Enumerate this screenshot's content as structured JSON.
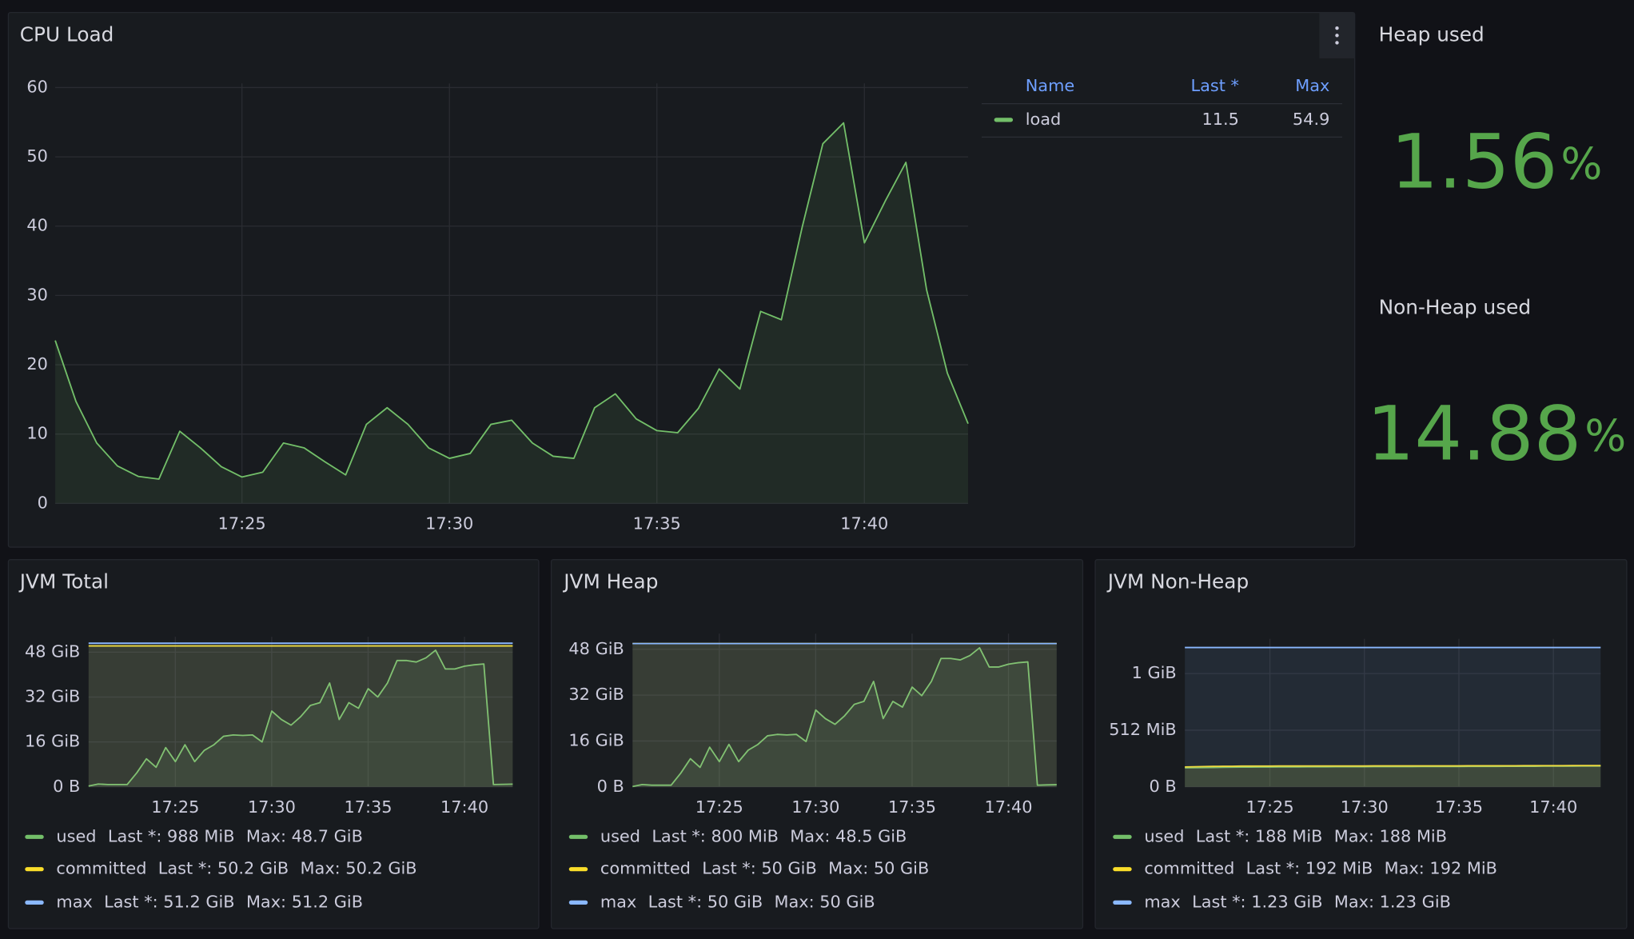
{
  "chart_data": [
    {
      "type": "line",
      "title": "CPU Load",
      "x": [
        "17:20:30",
        "17:21:00",
        "17:21:30",
        "17:22:00",
        "17:22:30",
        "17:23:00",
        "17:23:30",
        "17:24:00",
        "17:24:30",
        "17:25:00",
        "17:25:30",
        "17:26:00",
        "17:26:30",
        "17:27:00",
        "17:27:30",
        "17:28:00",
        "17:28:30",
        "17:29:00",
        "17:29:30",
        "17:30:00",
        "17:30:30",
        "17:31:00",
        "17:31:30",
        "17:32:00",
        "17:32:30",
        "17:33:00",
        "17:33:30",
        "17:34:00",
        "17:34:30",
        "17:35:00",
        "17:35:30",
        "17:36:00",
        "17:36:30",
        "17:37:00",
        "17:37:30",
        "17:38:00",
        "17:38:30",
        "17:39:00",
        "17:39:30",
        "17:40:00",
        "17:40:30",
        "17:41:00",
        "17:41:30",
        "17:42:00",
        "17:42:30"
      ],
      "xlim": [
        "17:20:30",
        "17:42:30"
      ],
      "xticks": [
        "17:25",
        "17:30",
        "17:35",
        "17:40"
      ],
      "ylim": [
        0,
        60
      ],
      "yticks": [
        0,
        10,
        20,
        30,
        40,
        50,
        60
      ],
      "grid": true,
      "legend_columns": [
        "Name",
        "Last *",
        "Max"
      ],
      "series": [
        {
          "name": "load",
          "color": "#73bf69",
          "stats": [
            11.5,
            54.9
          ],
          "values": [
            23.5,
            14.7,
            8.7,
            5.4,
            3.9,
            3.5,
            10.4,
            8,
            5.3,
            3.8,
            4.5,
            8.7,
            8,
            6,
            4.1,
            11.4,
            13.8,
            11.4,
            8,
            6.5,
            7.2,
            11.4,
            12,
            8.7,
            6.8,
            6.5,
            13.8,
            15.8,
            12.2,
            10.5,
            10.2,
            13.7,
            19.4,
            16.5,
            27.7,
            26.5,
            39.8,
            51.9,
            54.9,
            37.6,
            43.6,
            49.2,
            30.8,
            18.8,
            11.5
          ]
        }
      ]
    },
    {
      "type": "line",
      "title": "JVM Total",
      "x": [
        "17:20:30",
        "17:21:00",
        "17:21:30",
        "17:22:00",
        "17:22:30",
        "17:23:00",
        "17:23:30",
        "17:24:00",
        "17:24:30",
        "17:25:00",
        "17:25:30",
        "17:26:00",
        "17:26:30",
        "17:27:00",
        "17:27:30",
        "17:28:00",
        "17:28:30",
        "17:29:00",
        "17:29:30",
        "17:30:00",
        "17:30:30",
        "17:31:00",
        "17:31:30",
        "17:32:00",
        "17:32:30",
        "17:33:00",
        "17:33:30",
        "17:34:00",
        "17:34:30",
        "17:35:00",
        "17:35:30",
        "17:36:00",
        "17:36:30",
        "17:37:00",
        "17:37:30",
        "17:38:00",
        "17:38:30",
        "17:39:00",
        "17:39:30",
        "17:40:00",
        "17:40:30",
        "17:41:00",
        "17:41:30",
        "17:42:00",
        "17:42:30"
      ],
      "xlim": [
        "17:20:30",
        "17:42:30"
      ],
      "xticks": [
        "17:25",
        "17:30",
        "17:35",
        "17:40"
      ],
      "ylim": [
        0,
        52
      ],
      "yticks": [
        {
          "value": 0,
          "label": "0 B"
        },
        {
          "value": 16,
          "label": "16 GiB"
        },
        {
          "value": 32,
          "label": "32 GiB"
        },
        {
          "value": 48,
          "label": "48 GiB"
        }
      ],
      "grid": true,
      "series": [
        {
          "name": "used",
          "color": "#73bf69",
          "stats": [
            "Last *: 988 MiB",
            "Max: 48.7 GiB"
          ],
          "values": [
            0.3,
            1,
            0.8,
            0.8,
            0.8,
            5,
            10,
            7,
            14,
            9,
            15,
            9,
            13,
            15,
            18,
            18.5,
            18.3,
            18.5,
            16,
            27,
            24,
            22,
            25,
            29,
            30,
            37,
            24,
            30,
            28,
            35,
            32,
            37,
            45,
            45,
            44.5,
            46,
            48.7,
            42,
            42,
            43,
            43.5,
            43.8,
            0.8,
            0.9,
            0.965
          ]
        },
        {
          "name": "committed",
          "color": "#fade2a",
          "stats": [
            "Last *: 50.2 GiB",
            "Max: 50.2 GiB"
          ],
          "values": [
            50.2,
            50.2,
            50.2,
            50.2,
            50.2,
            50.2,
            50.2,
            50.2,
            50.2,
            50.2,
            50.2,
            50.2,
            50.2,
            50.2,
            50.2,
            50.2,
            50.2,
            50.2,
            50.2,
            50.2,
            50.2,
            50.2,
            50.2,
            50.2,
            50.2,
            50.2,
            50.2,
            50.2,
            50.2,
            50.2,
            50.2,
            50.2,
            50.2,
            50.2,
            50.2,
            50.2,
            50.2,
            50.2,
            50.2,
            50.2,
            50.2,
            50.2,
            50.2,
            50.2,
            50.2
          ]
        },
        {
          "name": "max",
          "color": "#8ab8ff",
          "stats": [
            "Last *: 51.2 GiB",
            "Max: 51.2 GiB"
          ],
          "values": [
            51.2,
            51.2,
            51.2,
            51.2,
            51.2,
            51.2,
            51.2,
            51.2,
            51.2,
            51.2,
            51.2,
            51.2,
            51.2,
            51.2,
            51.2,
            51.2,
            51.2,
            51.2,
            51.2,
            51.2,
            51.2,
            51.2,
            51.2,
            51.2,
            51.2,
            51.2,
            51.2,
            51.2,
            51.2,
            51.2,
            51.2,
            51.2,
            51.2,
            51.2,
            51.2,
            51.2,
            51.2,
            51.2,
            51.2,
            51.2,
            51.2,
            51.2,
            51.2,
            51.2,
            51.2
          ]
        }
      ]
    },
    {
      "type": "line",
      "title": "JVM Heap",
      "x": [
        "17:20:30",
        "17:21:00",
        "17:21:30",
        "17:22:00",
        "17:22:30",
        "17:23:00",
        "17:23:30",
        "17:24:00",
        "17:24:30",
        "17:25:00",
        "17:25:30",
        "17:26:00",
        "17:26:30",
        "17:27:00",
        "17:27:30",
        "17:28:00",
        "17:28:30",
        "17:29:00",
        "17:29:30",
        "17:30:00",
        "17:30:30",
        "17:31:00",
        "17:31:30",
        "17:32:00",
        "17:32:30",
        "17:33:00",
        "17:33:30",
        "17:34:00",
        "17:34:30",
        "17:35:00",
        "17:35:30",
        "17:36:00",
        "17:36:30",
        "17:37:00",
        "17:37:30",
        "17:38:00",
        "17:38:30",
        "17:39:00",
        "17:39:30",
        "17:40:00",
        "17:40:30",
        "17:41:00",
        "17:41:30",
        "17:42:00",
        "17:42:30"
      ],
      "xlim": [
        "17:20:30",
        "17:42:30"
      ],
      "xticks": [
        "17:25",
        "17:30",
        "17:35",
        "17:40"
      ],
      "ylim": [
        0,
        52
      ],
      "yticks": [
        {
          "value": 0,
          "label": "0 B"
        },
        {
          "value": 16,
          "label": "16 GiB"
        },
        {
          "value": 32,
          "label": "32 GiB"
        },
        {
          "value": 48,
          "label": "48 GiB"
        }
      ],
      "grid": true,
      "series": [
        {
          "name": "used",
          "color": "#73bf69",
          "stats": [
            "Last *: 800 MiB",
            "Max: 48.5 GiB"
          ],
          "values": [
            0.1,
            0.8,
            0.6,
            0.6,
            0.6,
            4.8,
            9.8,
            6.8,
            13.8,
            8.8,
            14.8,
            8.8,
            12.8,
            14.8,
            17.8,
            18.3,
            18.1,
            18.3,
            15.8,
            26.8,
            23.8,
            21.8,
            24.8,
            28.8,
            29.8,
            36.8,
            23.8,
            29.8,
            27.8,
            34.8,
            31.8,
            36.8,
            44.8,
            44.8,
            44.3,
            45.8,
            48.5,
            41.8,
            41.8,
            42.8,
            43.3,
            43.6,
            0.6,
            0.7,
            0.78
          ]
        },
        {
          "name": "committed",
          "color": "#fade2a",
          "stats": [
            "Last *: 50 GiB",
            "Max: 50 GiB"
          ],
          "values": [
            50,
            50,
            50,
            50,
            50,
            50,
            50,
            50,
            50,
            50,
            50,
            50,
            50,
            50,
            50,
            50,
            50,
            50,
            50,
            50,
            50,
            50,
            50,
            50,
            50,
            50,
            50,
            50,
            50,
            50,
            50,
            50,
            50,
            50,
            50,
            50,
            50,
            50,
            50,
            50,
            50,
            50,
            50,
            50,
            50
          ]
        },
        {
          "name": "max",
          "color": "#8ab8ff",
          "stats": [
            "Last *: 50 GiB",
            "Max: 50 GiB"
          ],
          "values": [
            50,
            50,
            50,
            50,
            50,
            50,
            50,
            50,
            50,
            50,
            50,
            50,
            50,
            50,
            50,
            50,
            50,
            50,
            50,
            50,
            50,
            50,
            50,
            50,
            50,
            50,
            50,
            50,
            50,
            50,
            50,
            50,
            50,
            50,
            50,
            50,
            50,
            50,
            50,
            50,
            50,
            50,
            50,
            50,
            50
          ]
        }
      ]
    },
    {
      "type": "line",
      "title": "JVM Non-Heap",
      "x": [
        "17:20:30",
        "17:21:00",
        "17:21:30",
        "17:22:00",
        "17:22:30",
        "17:23:00",
        "17:23:30",
        "17:24:00",
        "17:24:30",
        "17:25:00",
        "17:25:30",
        "17:26:00",
        "17:26:30",
        "17:27:00",
        "17:27:30",
        "17:28:00",
        "17:28:30",
        "17:29:00",
        "17:29:30",
        "17:30:00",
        "17:30:30",
        "17:31:00",
        "17:31:30",
        "17:32:00",
        "17:32:30",
        "17:33:00",
        "17:33:30",
        "17:34:00",
        "17:34:30",
        "17:35:00",
        "17:35:30",
        "17:36:00",
        "17:36:30",
        "17:37:00",
        "17:37:30",
        "17:38:00",
        "17:38:30",
        "17:39:00",
        "17:39:30",
        "17:40:00",
        "17:40:30",
        "17:41:00",
        "17:41:30",
        "17:42:00",
        "17:42:30"
      ],
      "xlim": [
        "17:20:30",
        "17:42:30"
      ],
      "xticks": [
        "17:25",
        "17:30",
        "17:35",
        "17:40"
      ],
      "ylim": [
        0,
        1300
      ],
      "yticks": [
        {
          "value": 0,
          "label": "0 B"
        },
        {
          "value": 512,
          "label": "512 MiB"
        },
        {
          "value": 1024,
          "label": "1 GiB"
        }
      ],
      "grid": true,
      "series": [
        {
          "name": "used",
          "color": "#73bf69",
          "stats": [
            "Last *: 188 MiB",
            "Max: 188 MiB"
          ],
          "values": [
            172,
            173,
            174,
            175,
            176,
            177,
            178,
            178,
            179,
            179,
            180,
            180,
            180,
            181,
            181,
            181,
            182,
            182,
            182,
            182,
            183,
            183,
            183,
            183,
            183,
            184,
            184,
            184,
            184,
            184,
            185,
            185,
            185,
            185,
            186,
            186,
            186,
            186,
            187,
            187,
            187,
            187,
            188,
            188,
            188
          ]
        },
        {
          "name": "committed",
          "color": "#fade2a",
          "stats": [
            "Last *: 192 MiB",
            "Max: 192 MiB"
          ],
          "values": [
            180,
            182,
            184,
            185,
            186,
            186,
            187,
            187,
            187,
            187,
            188,
            188,
            188,
            188,
            188,
            188,
            188,
            188,
            188,
            188,
            189,
            189,
            189,
            189,
            189,
            189,
            189,
            189,
            189,
            189,
            190,
            190,
            190,
            190,
            190,
            190,
            191,
            191,
            191,
            191,
            191,
            192,
            192,
            192,
            192
          ]
        },
        {
          "name": "max",
          "color": "#8ab8ff",
          "stats": [
            "Last *: 1.23 GiB",
            "Max: 1.23 GiB"
          ],
          "values": [
            1259.5,
            1259.5,
            1259.5,
            1259.5,
            1259.5,
            1259.5,
            1259.5,
            1259.5,
            1259.5,
            1259.5,
            1259.5,
            1259.5,
            1259.5,
            1259.5,
            1259.5,
            1259.5,
            1259.5,
            1259.5,
            1259.5,
            1259.5,
            1259.5,
            1259.5,
            1259.5,
            1259.5,
            1259.5,
            1259.5,
            1259.5,
            1259.5,
            1259.5,
            1259.5,
            1259.5,
            1259.5,
            1259.5,
            1259.5,
            1259.5,
            1259.5,
            1259.5,
            1259.5,
            1259.5,
            1259.5,
            1259.5,
            1259.5,
            1259.5,
            1259.5,
            1259.5
          ]
        }
      ]
    }
  ],
  "stats": [
    {
      "title": "Heap used",
      "value": 1.56,
      "unit": "%",
      "color": "#56a64b"
    },
    {
      "title": "Non-Heap used",
      "value": 14.88,
      "unit": "%",
      "color": "#56a64b"
    }
  ]
}
